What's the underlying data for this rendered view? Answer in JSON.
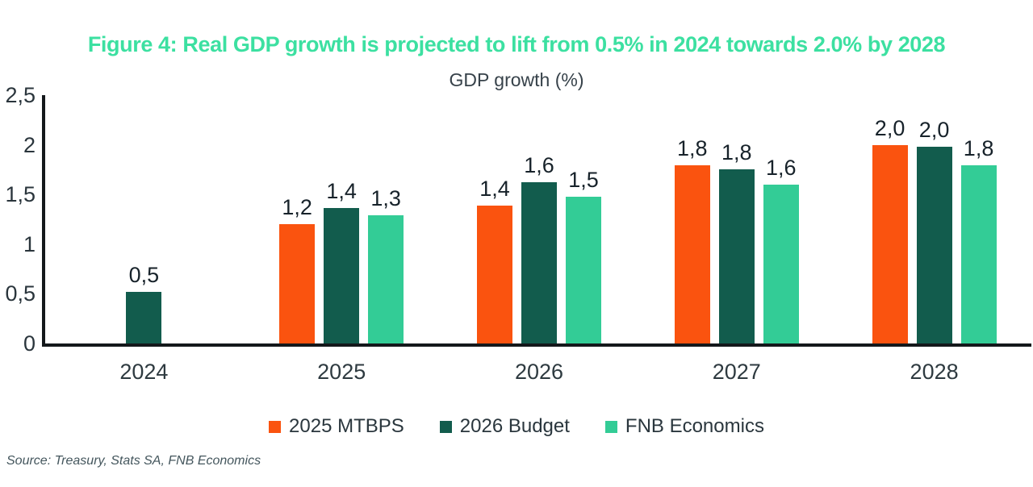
{
  "figure": {
    "title": "Figure 4: Real GDP growth is projected to lift from 0.5% in 2024 towards 2.0% by 2028",
    "subtitle": "GDP growth (%)",
    "source": "Source: Treasury, Stats SA, FNB Economics"
  },
  "colors": {
    "title_accent": "#3CE0A1",
    "axis": "#14181B",
    "tick_text": "#2A353C",
    "data_label_text": "#17222A",
    "source_text": "#44565D",
    "background": "#FFFFFF"
  },
  "chart_data": {
    "type": "bar",
    "title": "GDP growth (%)",
    "xlabel": "",
    "ylabel": "",
    "grid": false,
    "legend_position": "bottom",
    "categories": [
      "2024",
      "2025",
      "2026",
      "2027",
      "2028"
    ],
    "y_axis": {
      "min": 0,
      "max": 2.5,
      "tick_interval": 0.5,
      "tick_labels": [
        "0",
        "0,5",
        "1",
        "1,5",
        "2",
        "2,5"
      ]
    },
    "series": [
      {
        "name": "2025 MTBPS",
        "color": "#FA530F",
        "values": [
          null,
          1.2,
          1.4,
          1.8,
          2.0
        ],
        "labels": [
          "",
          "1,2",
          "1,4",
          "1,8",
          "2,0"
        ],
        "plot_heights": [
          null,
          1.2,
          1.39,
          1.79,
          2.0
        ]
      },
      {
        "name": "2026 Budget",
        "color": "#125C4D",
        "values": [
          0.5,
          1.4,
          1.6,
          1.8,
          2.0
        ],
        "labels": [
          "0,5",
          "1,4",
          "1,6",
          "1,8",
          "2,0"
        ],
        "plot_heights": [
          0.52,
          1.36,
          1.62,
          1.75,
          1.98
        ]
      },
      {
        "name": "FNB Economics",
        "color": "#33CC96",
        "values": [
          null,
          1.3,
          1.5,
          1.6,
          1.8
        ],
        "labels": [
          "",
          "1,3",
          "1,5",
          "1,6",
          "1,8"
        ],
        "plot_heights": [
          null,
          1.29,
          1.48,
          1.6,
          1.79
        ]
      }
    ]
  }
}
